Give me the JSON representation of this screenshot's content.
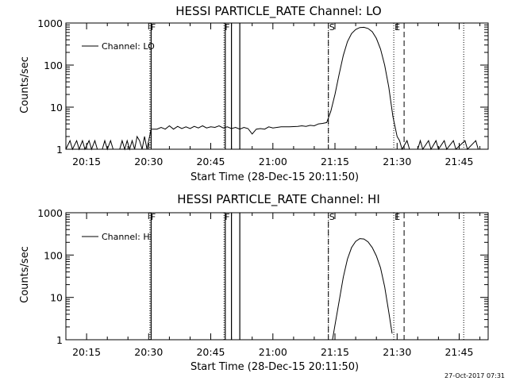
{
  "footer": {
    "timestamp": "27-Oct-2017 07:31"
  },
  "chart_data": [
    {
      "type": "line",
      "title": "HESSI PARTICLE_RATE Channel: LO",
      "xlabel": "Start Time (28-Dec-15 20:11:50)",
      "ylabel": "Counts/sec",
      "y_scale": "log",
      "ylim": [
        1,
        1000
      ],
      "yticks": [
        "1",
        "10",
        "100",
        "1000"
      ],
      "xlim": [
        "20:10",
        "21:52"
      ],
      "xticks": [
        "20:15",
        "20:30",
        "20:45",
        "21:00",
        "21:15",
        "21:30",
        "21:45"
      ],
      "legend": {
        "label": "Channel: LO",
        "position": "top-left"
      },
      "markers": [
        {
          "label": "F",
          "time": "20:30.3",
          "style": "dotted"
        },
        {
          "label": "F",
          "time": "20:48.2",
          "style": "dotted"
        },
        {
          "label": "S",
          "time": "21:13.4",
          "style": "dotted"
        },
        {
          "label": "E",
          "time": "21:29.2",
          "style": "dotted"
        },
        {
          "label": "",
          "time": "21:46.1",
          "style": "dotted"
        }
      ],
      "solid_lines": [
        "20:30.6",
        "20:48.5",
        "20:50.0",
        "20:52.0"
      ],
      "dashed_lines": [
        "21:13.4",
        "21:31.7"
      ],
      "series": [
        {
          "name": "Channel: LO",
          "points": [
            [
              "20:10.0",
              1
            ],
            [
              "20:11.0",
              1.6
            ],
            [
              "20:11.6",
              1
            ],
            [
              "20:12.6",
              1.6
            ],
            [
              "20:13.2",
              1
            ],
            [
              "20:14.0",
              1.6
            ],
            [
              "20:14.6",
              1
            ],
            [
              "20:15.6",
              1.6
            ],
            [
              "20:16.2",
              1
            ],
            [
              "20:17.0",
              1.6
            ],
            [
              "20:17.6",
              1
            ],
            [
              "20:18.8",
              1
            ],
            [
              "20:19.4",
              1.6
            ],
            [
              "20:20.0",
              1
            ],
            [
              "20:20.8",
              1.6
            ],
            [
              "20:21.4",
              1
            ],
            [
              "20:23.0",
              1
            ],
            [
              "20:23.6",
              1.6
            ],
            [
              "20:24.2",
              1
            ],
            [
              "20:24.8",
              1.6
            ],
            [
              "20:25.4",
              1
            ],
            [
              "20:26.0",
              1.6
            ],
            [
              "20:26.6",
              1
            ],
            [
              "20:27.2",
              2.0
            ],
            [
              "20:27.8",
              1.6
            ],
            [
              "20:28.4",
              1
            ],
            [
              "20:29.0",
              2.0
            ],
            [
              "20:29.6",
              1
            ],
            [
              "20:30.0",
              1.6
            ],
            [
              "20:30.6",
              3.0
            ],
            [
              "20:32.0",
              3.0
            ],
            [
              "20:33.0",
              3.3
            ],
            [
              "20:34.0",
              3.0
            ],
            [
              "20:35.0",
              3.6
            ],
            [
              "20:36.0",
              3.0
            ],
            [
              "20:37.0",
              3.5
            ],
            [
              "20:38.0",
              3.1
            ],
            [
              "20:39.0",
              3.4
            ],
            [
              "20:40.0",
              3.1
            ],
            [
              "20:41.0",
              3.5
            ],
            [
              "20:42.0",
              3.2
            ],
            [
              "20:43.0",
              3.6
            ],
            [
              "20:44.0",
              3.2
            ],
            [
              "20:45.0",
              3.4
            ],
            [
              "20:46.0",
              3.3
            ],
            [
              "20:47.0",
              3.6
            ],
            [
              "20:48.0",
              3.2
            ],
            [
              "20:49.0",
              3.4
            ],
            [
              "20:50.0",
              3.1
            ],
            [
              "20:51.0",
              3.3
            ],
            [
              "20:52.0",
              3.0
            ],
            [
              "20:53.0",
              3.3
            ],
            [
              "20:54.0",
              3.1
            ],
            [
              "20:55.0",
              2.3
            ],
            [
              "20:56.0",
              3.0
            ],
            [
              "20:57.0",
              3.1
            ],
            [
              "20:58.0",
              3.0
            ],
            [
              "20:59.0",
              3.4
            ],
            [
              "21:00.0",
              3.2
            ],
            [
              "21:02.0",
              3.4
            ],
            [
              "21:04.0",
              3.4
            ],
            [
              "21:06.0",
              3.5
            ],
            [
              "21:07.0",
              3.6
            ],
            [
              "21:08.0",
              3.5
            ],
            [
              "21:09.0",
              3.7
            ],
            [
              "21:10.0",
              3.6
            ],
            [
              "21:11.0",
              4.0
            ],
            [
              "21:12.0",
              4.1
            ],
            [
              "21:13.0",
              4.3
            ],
            [
              "21:14.0",
              8.0
            ],
            [
              "21:15.0",
              20
            ],
            [
              "21:16.0",
              60
            ],
            [
              "21:17.0",
              170
            ],
            [
              "21:18.0",
              360
            ],
            [
              "21:19.0",
              560
            ],
            [
              "21:20.0",
              700
            ],
            [
              "21:21.0",
              780
            ],
            [
              "21:22.0",
              790
            ],
            [
              "21:23.0",
              740
            ],
            [
              "21:24.0",
              620
            ],
            [
              "21:25.0",
              430
            ],
            [
              "21:26.0",
              240
            ],
            [
              "21:27.0",
              100
            ],
            [
              "21:28.0",
              30
            ],
            [
              "21:29.0",
              6.0
            ],
            [
              "21:30.0",
              2.0
            ],
            [
              "21:30.6",
              1.6
            ],
            [
              "21:31.2",
              1
            ],
            [
              "21:32.4",
              1.6
            ],
            [
              "21:33.0",
              1
            ],
            [
              "21:35.0",
              1
            ],
            [
              "21:35.6",
              1.6
            ],
            [
              "21:36.2",
              1
            ],
            [
              "21:37.6",
              1.6
            ],
            [
              "21:38.2",
              1
            ],
            [
              "21:39.4",
              1.6
            ],
            [
              "21:40.0",
              1
            ],
            [
              "21:41.4",
              1.6
            ],
            [
              "21:42.0",
              1
            ],
            [
              "21:43.6",
              1.6
            ],
            [
              "21:44.2",
              1
            ],
            [
              "21:46.4",
              1.6
            ],
            [
              "21:47.0",
              1
            ],
            [
              "21:49.0",
              1.6
            ],
            [
              "21:49.6",
              1
            ],
            [
              "21:52.0",
              1
            ]
          ]
        }
      ]
    },
    {
      "type": "line",
      "title": "HESSI PARTICLE_RATE Channel: HI",
      "xlabel": "Start Time (28-Dec-15 20:11:50)",
      "ylabel": "Counts/sec",
      "y_scale": "log",
      "ylim": [
        1,
        1000
      ],
      "yticks": [
        "1",
        "10",
        "100",
        "1000"
      ],
      "xlim": [
        "20:10",
        "21:52"
      ],
      "xticks": [
        "20:15",
        "20:30",
        "20:45",
        "21:00",
        "21:15",
        "21:30",
        "21:45"
      ],
      "legend": {
        "label": "Channel: HI",
        "position": "top-left"
      },
      "markers": [
        {
          "label": "F",
          "time": "20:30.3",
          "style": "dotted"
        },
        {
          "label": "F",
          "time": "20:48.2",
          "style": "dotted"
        },
        {
          "label": "S",
          "time": "21:13.4",
          "style": "dotted"
        },
        {
          "label": "E",
          "time": "21:29.2",
          "style": "dotted"
        },
        {
          "label": "",
          "time": "21:46.1",
          "style": "dotted"
        }
      ],
      "solid_lines": [
        "20:30.6",
        "20:48.5",
        "20:50.0",
        "20:52.0"
      ],
      "dashed_lines": [
        "21:13.4",
        "21:31.7"
      ],
      "series": [
        {
          "name": "Channel: HI",
          "points": [
            [
              "21:14.4",
              1
            ],
            [
              "21:15.0",
              2.2
            ],
            [
              "21:16.0",
              8
            ],
            [
              "21:17.0",
              30
            ],
            [
              "21:18.0",
              80
            ],
            [
              "21:19.0",
              150
            ],
            [
              "21:20.0",
              210
            ],
            [
              "21:21.0",
              245
            ],
            [
              "21:22.0",
              240
            ],
            [
              "21:23.0",
              205
            ],
            [
              "21:24.0",
              150
            ],
            [
              "21:25.0",
              95
            ],
            [
              "21:26.0",
              50
            ],
            [
              "21:27.0",
              18
            ],
            [
              "21:28.0",
              4.5
            ],
            [
              "21:28.8",
              1.4
            ]
          ]
        }
      ]
    }
  ]
}
